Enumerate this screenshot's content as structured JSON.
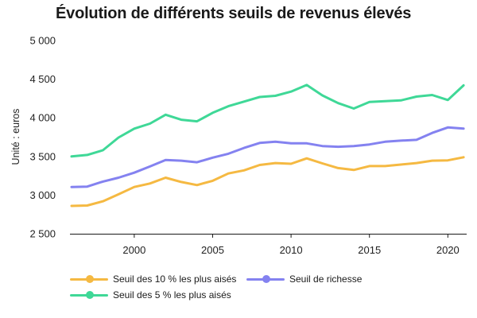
{
  "title": "Évolution de différents seuils de revenus élevés",
  "chart_data": {
    "type": "line",
    "title": "Évolution de différents seuils de revenus élevés",
    "xlabel": "",
    "ylabel": "Unité : euros",
    "x": [
      1996,
      1997,
      1998,
      1999,
      2000,
      2001,
      2002,
      2003,
      2004,
      2005,
      2006,
      2007,
      2008,
      2009,
      2010,
      2011,
      2012,
      2013,
      2014,
      2015,
      2016,
      2017,
      2018,
      2019,
      2020,
      2021
    ],
    "xlim": [
      1995.9,
      2021.2
    ],
    "ylim": [
      2500,
      5000
    ],
    "xticks": [
      2000,
      2005,
      2010,
      2015,
      2020
    ],
    "xtick_labels": [
      "2000",
      "2005",
      "2010",
      "2015",
      "2020"
    ],
    "yticks": [
      2500,
      3000,
      3500,
      4000,
      4500,
      5000
    ],
    "ytick_labels": [
      "2 500",
      "3 000",
      "3 500",
      "4 000",
      "4 500",
      "5 000"
    ],
    "grid": false,
    "legend_position": "bottom",
    "series": [
      {
        "name": "Seuil des 10 % les plus aisés",
        "color": "#f5b942",
        "values": [
          2860,
          2865,
          2920,
          3010,
          3105,
          3150,
          3225,
          3170,
          3130,
          3185,
          3280,
          3320,
          3390,
          3415,
          3405,
          3475,
          3410,
          3350,
          3325,
          3375,
          3375,
          3395,
          3415,
          3445,
          3450,
          3490
        ]
      },
      {
        "name": "Seuil de richesse",
        "color": "#8482f0",
        "values": [
          3105,
          3110,
          3175,
          3225,
          3290,
          3370,
          3455,
          3445,
          3425,
          3485,
          3535,
          3610,
          3675,
          3690,
          3670,
          3670,
          3635,
          3625,
          3635,
          3655,
          3690,
          3705,
          3715,
          3805,
          3875,
          3860
        ]
      },
      {
        "name": "Seuil des 5 % les plus aisés",
        "color": "#3fd897",
        "values": [
          3500,
          3520,
          3580,
          3745,
          3860,
          3925,
          4040,
          3975,
          3955,
          4065,
          4150,
          4210,
          4270,
          4285,
          4340,
          4425,
          4290,
          4190,
          4120,
          4205,
          4215,
          4225,
          4275,
          4295,
          4230,
          4420
        ]
      }
    ]
  }
}
